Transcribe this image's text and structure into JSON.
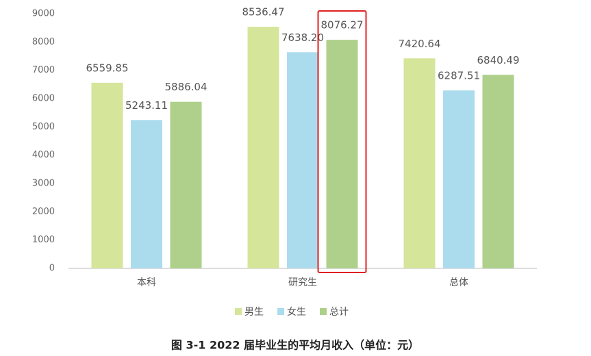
{
  "chart_data": {
    "type": "bar",
    "title": "图 3-1   2022 届毕业生的平均月收入（单位：元）",
    "categories": [
      "本科",
      "研究生",
      "总体"
    ],
    "series": [
      {
        "name": "男生",
        "color": "#d5e59a",
        "values": [
          6559.85,
          8536.47,
          7420.64
        ],
        "value_labels": [
          "6559.85",
          "8536.47",
          "7420.64"
        ]
      },
      {
        "name": "女生",
        "color": "#abdcee",
        "values": [
          5243.11,
          7638.2,
          6287.51
        ],
        "value_labels": [
          "5243.11",
          "7638.20",
          "6287.51"
        ]
      },
      {
        "name": "总计",
        "color": "#aed08b",
        "values": [
          5886.04,
          8076.27,
          6840.49
        ],
        "value_labels": [
          "5886.04",
          "8076.27",
          "6840.49"
        ]
      }
    ],
    "ylim": [
      0,
      9000
    ],
    "yticks": [
      0,
      1000,
      2000,
      3000,
      4000,
      5000,
      6000,
      7000,
      8000,
      9000
    ],
    "grid": false,
    "legend": "bottom"
  }
}
